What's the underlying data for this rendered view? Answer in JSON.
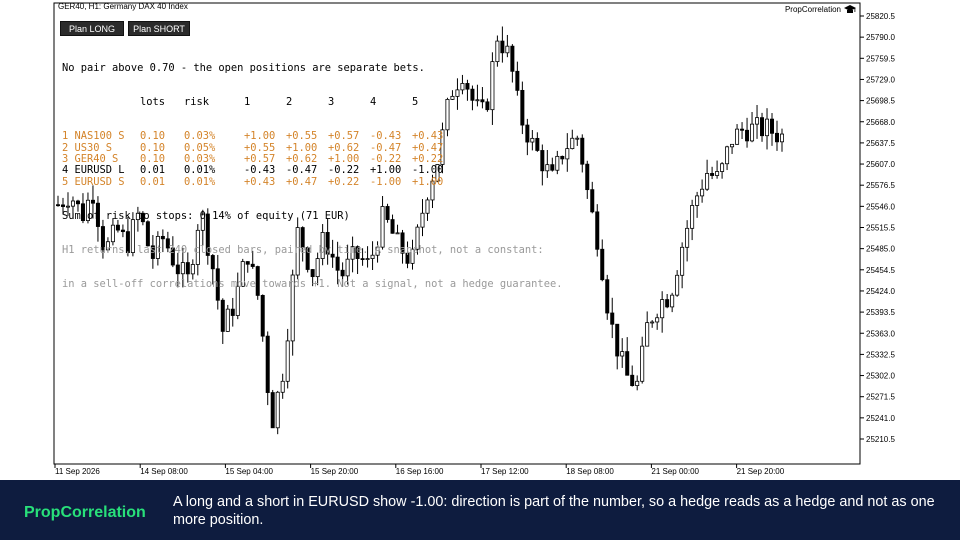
{
  "chart": {
    "symbol_label": "GER40, H1:  Germany DAX 40 Index",
    "brand_tag": "PropCorrelation",
    "y_ticks": [
      "25820.5",
      "25790.0",
      "25759.5",
      "25729.0",
      "25698.5",
      "25668.0",
      "25637.5",
      "25607.0",
      "25576.5",
      "25546.0",
      "25515.5",
      "25485.0",
      "25454.5",
      "25424.0",
      "25393.5",
      "25363.0",
      "25332.5",
      "25302.0",
      "25271.5",
      "25241.0",
      "25210.5"
    ],
    "x_ticks": [
      "11 Sep 2026",
      "14 Sep 08:00",
      "15 Sep 04:00",
      "15 Sep 20:00",
      "16 Sep 16:00",
      "17 Sep 12:00",
      "18 Sep 08:00",
      "21 Sep 00:00",
      "21 Sep 20:00"
    ],
    "ylim": [
      25195,
      25835
    ]
  },
  "buttons": {
    "long": "Plan LONG",
    "short": "Plan SHORT"
  },
  "panel": {
    "headline": "No pair above 0.70 - the open positions are separate bets.",
    "header": {
      "name": "",
      "lots": "lots",
      "risk": "risk",
      "cols": [
        "1",
        "2",
        "3",
        "4",
        "5"
      ]
    },
    "rows": [
      {
        "name": "1 NAS100 S",
        "lots": "0.10",
        "risk": "0.03%",
        "vals": [
          "+1.00",
          "+0.55",
          "+0.57",
          "-0.43",
          "+0.43"
        ],
        "color": "#d4842a"
      },
      {
        "name": "2 US30 S",
        "lots": "0.10",
        "risk": "0.05%",
        "vals": [
          "+0.55",
          "+1.00",
          "+0.62",
          "-0.47",
          "+0.47"
        ],
        "color": "#d4842a"
      },
      {
        "name": "3 GER40 S",
        "lots": "0.10",
        "risk": "0.03%",
        "vals": [
          "+0.57",
          "+0.62",
          "+1.00",
          "-0.22",
          "+0.22"
        ],
        "color": "#d4842a"
      },
      {
        "name": "4 EURUSD L",
        "lots": "0.01",
        "risk": "0.01%",
        "vals": [
          "-0.43",
          "-0.47",
          "-0.22",
          "+1.00",
          "-1.00"
        ],
        "color": "#000000"
      },
      {
        "name": "5 EURUSD S",
        "lots": "0.01",
        "risk": "0.01%",
        "vals": [
          "+0.43",
          "+0.47",
          "+0.22",
          "-1.00",
          "+1.00"
        ],
        "color": "#d4842a"
      }
    ],
    "sum_line": "Sum of risk to stops: 0.14% of equity (71 EUR)",
    "note_line1": "H1 returns, last 240 closed bars, paired by time. A snapshot, not a constant:",
    "note_line2": "in a sell-off correlations move towards +1. Not a signal, not a hedge guarantee."
  },
  "footer": {
    "brand": "PropCorrelation",
    "caption": "A long and a short in EURUSD show -1.00: direction is part of the number, so a hedge reads as a hedge and not as one more position."
  }
}
